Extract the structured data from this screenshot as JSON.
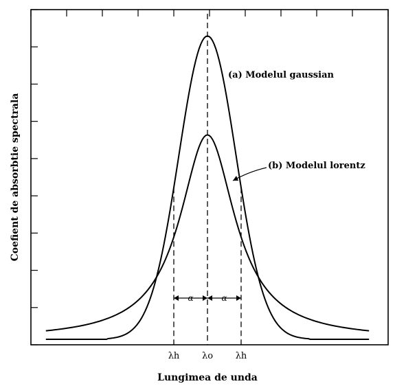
{
  "chart_data": {
    "type": "line",
    "title": "",
    "xlabel": "Lungimea de unda",
    "ylabel": "Coefient de absorbtie spectrala",
    "grid": false,
    "x_tick_labels": [
      {
        "text": "λh",
        "x": -1
      },
      {
        "text": "λo",
        "x": 0
      },
      {
        "text": "λh",
        "x": 1
      }
    ],
    "xlim": [
      -4.8,
      4.8
    ],
    "ylim": [
      0,
      1
    ],
    "series": [
      {
        "name": "(a) Modelul gaussian",
        "model": "gaussian",
        "peak": 0.92,
        "half_width": 1
      },
      {
        "name": "(b) Modelul lorentz",
        "model": "lorentz",
        "peak": 0.62,
        "half_width": 1
      }
    ],
    "annotations": {
      "gaussian_label": "(a) Modelul gaussian",
      "lorentz_label": "(b) Modelul lorentz",
      "half_width_symbol": "α"
    }
  }
}
